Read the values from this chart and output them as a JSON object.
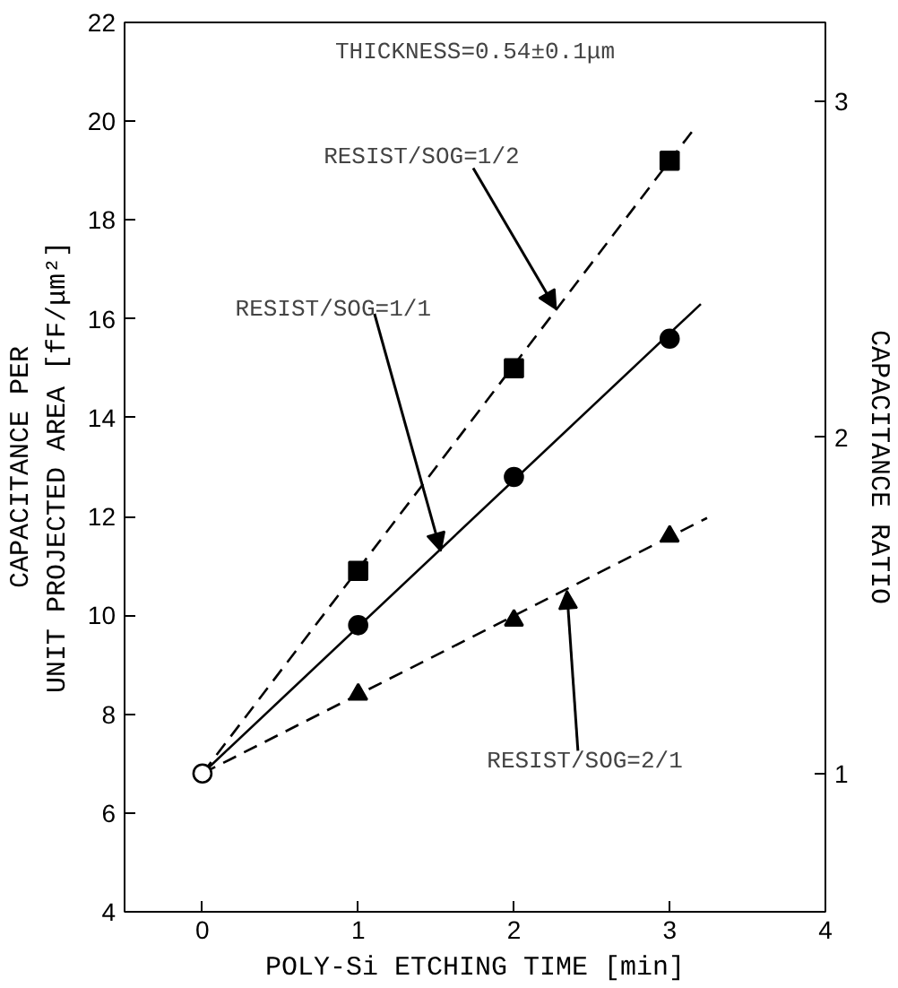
{
  "chart_data": {
    "type": "scatter",
    "xlabel": "POLY-Si ETCHING TIME [min]",
    "ylabel": "CAPACITANCE PER\nUNIT PROJECTED AREA [fF/μm²]",
    "y2label": "CAPACITANCE RATIO",
    "xlim": [
      -0.5,
      4
    ],
    "xticks": [
      0,
      1,
      2,
      3,
      4
    ],
    "ylim": [
      4,
      22
    ],
    "yticks": [
      4,
      6,
      8,
      10,
      12,
      14,
      16,
      18,
      20,
      22
    ],
    "y2lim": [
      0.588,
      3.235
    ],
    "y2ticks": [
      1,
      2,
      3
    ],
    "grid": false,
    "series": [
      {
        "type": "line",
        "x": [
          0,
          3.17
        ],
        "values": [
          6.8,
          19.9
        ],
        "color": "#000000",
        "line_style": "dashed",
        "marker": "none"
      },
      {
        "type": "line",
        "x": [
          0,
          3.2
        ],
        "values": [
          6.8,
          16.3
        ],
        "color": "#000000",
        "line_style": "solid",
        "marker": "none"
      },
      {
        "type": "line",
        "x": [
          0,
          3.24
        ],
        "values": [
          6.8,
          11.97
        ],
        "color": "#000000",
        "line_style": "dashed",
        "marker": "none"
      },
      {
        "x": [
          1,
          2,
          3
        ],
        "values": [
          10.9,
          15.0,
          19.2
        ],
        "color": "#000000",
        "marker": "square"
      },
      {
        "x": [
          1,
          2,
          3
        ],
        "values": [
          9.8,
          12.8,
          15.6
        ],
        "color": "#000000",
        "marker": "circle"
      },
      {
        "x": [
          1,
          2,
          3
        ],
        "values": [
          8.4,
          9.9,
          11.6
        ],
        "color": "#000000",
        "marker": "triangle"
      },
      {
        "x": [
          0
        ],
        "values": [
          6.8
        ],
        "color": "#ffffff",
        "marker": "circle"
      }
    ],
    "annotations": [
      "THICKNESS=0.54±0.1μm",
      {
        "text": "RESIST/SOG=1/2",
        "x": 2.27,
        "y": 16.2
      },
      {
        "text": "RESIST/SOG=1/1",
        "x": 1.53,
        "y": 11.3
      },
      {
        "text": "RESIST/SOG=2/1",
        "x": 2.34,
        "y": 10.5
      }
    ]
  }
}
